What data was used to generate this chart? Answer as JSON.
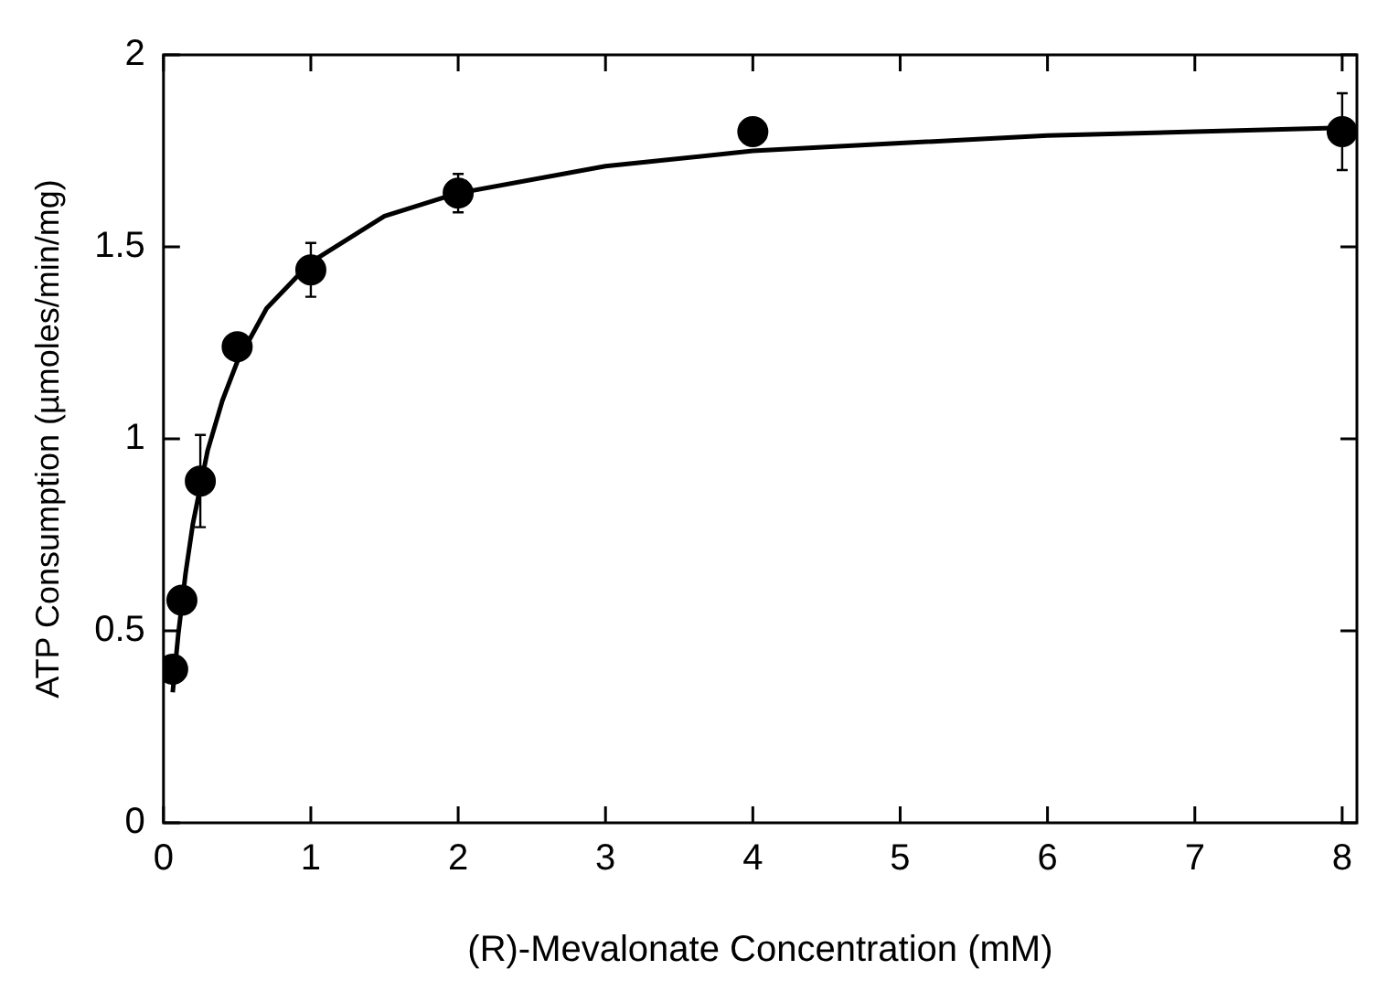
{
  "chart_data": {
    "type": "scatter",
    "xlabel": "(R)-Mevalonate Concentration (mM)",
    "ylabel": "ATP Consumption (µmoles/min/mg)",
    "xlim": [
      0,
      8.1
    ],
    "ylim": [
      0,
      2
    ],
    "xticks": [
      0,
      1,
      2,
      3,
      4,
      5,
      6,
      7,
      8
    ],
    "yticks": [
      0,
      0.5,
      1,
      1.5,
      2
    ],
    "grid": false,
    "legend": false,
    "marker": "circle",
    "series": [
      {
        "color": "#000000",
        "x": [
          0.0625,
          0.125,
          0.25,
          0.5,
          1,
          2,
          4,
          8
        ],
        "values": [
          0.4,
          0.58,
          0.89,
          1.24,
          1.44,
          1.64,
          1.8,
          1.8
        ],
        "errors": [
          0.03,
          0.03,
          0.12,
          0.03,
          0.07,
          0.05,
          null,
          0.1
        ]
      },
      {
        "type": "line",
        "color": "#000000",
        "marker": "none",
        "line_style": "solid",
        "x": [
          0.0625,
          0.1,
          0.15,
          0.2,
          0.3,
          0.4,
          0.5,
          0.7,
          1,
          1.5,
          2,
          3,
          4,
          5,
          6,
          7,
          8
        ],
        "values": [
          0.34,
          0.49,
          0.65,
          0.78,
          0.97,
          1.1,
          1.2,
          1.34,
          1.46,
          1.58,
          1.64,
          1.71,
          1.75,
          1.77,
          1.79,
          1.8,
          1.81
        ]
      }
    ]
  }
}
